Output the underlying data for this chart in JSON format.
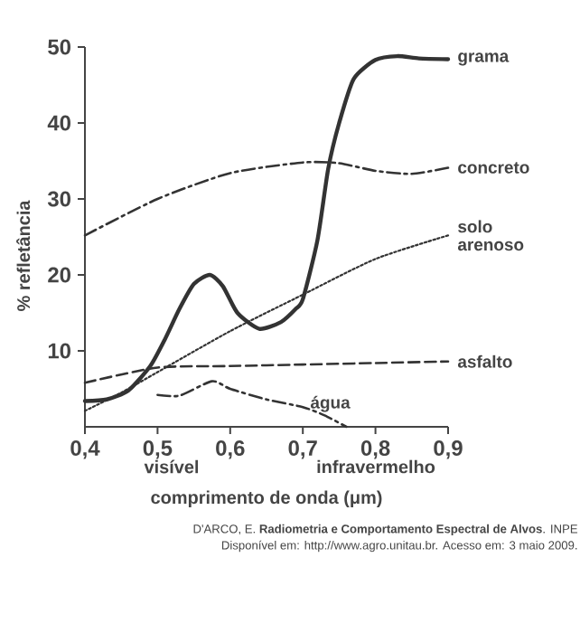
{
  "chart_data": {
    "type": "line",
    "xlabel": "comprimento de onda (μm)",
    "ylabel": "% refletância",
    "xlim": [
      0.4,
      0.9
    ],
    "ylim": [
      0,
      50
    ],
    "xticks": [
      {
        "value": 0.4,
        "label": "0,4"
      },
      {
        "value": 0.5,
        "label": "0,5"
      },
      {
        "value": 0.6,
        "label": "0,6"
      },
      {
        "value": 0.7,
        "label": "0,7"
      },
      {
        "value": 0.8,
        "label": "0,8"
      },
      {
        "value": 0.9,
        "label": "0,9"
      }
    ],
    "yticks": [
      10,
      20,
      30,
      40,
      50
    ],
    "series": [
      {
        "name": "grama",
        "color": "#333333",
        "line_style": "solid",
        "x": [
          0.4,
          0.43,
          0.46,
          0.49,
          0.51,
          0.53,
          0.55,
          0.572,
          0.59,
          0.61,
          0.64,
          0.67,
          0.69,
          0.7,
          0.72,
          0.735,
          0.75,
          0.77,
          0.8,
          0.83,
          0.86,
          0.9
        ],
        "values": [
          3.4,
          3.6,
          4.8,
          8.0,
          11.5,
          15.5,
          18.8,
          20.0,
          18.5,
          15.0,
          12.9,
          13.8,
          15.5,
          16.8,
          24.5,
          34,
          40,
          45.8,
          48.3,
          48.8,
          48.5,
          48.4
        ]
      },
      {
        "name": "concreto",
        "color": "#333333",
        "line_style": "dashdot",
        "x": [
          0.4,
          0.5,
          0.6,
          0.7,
          0.75,
          0.8,
          0.85,
          0.9
        ],
        "values": [
          25.2,
          30,
          33.4,
          34.8,
          34.7,
          33.7,
          33.3,
          34.1
        ]
      },
      {
        "name": "solo arenoso",
        "color": "#333333",
        "line_style": "dotted",
        "x": [
          0.4,
          0.45,
          0.5,
          0.6,
          0.7,
          0.8,
          0.9
        ],
        "values": [
          2.1,
          4.5,
          7.2,
          12.6,
          17.4,
          22.1,
          25.2
        ]
      },
      {
        "name": "asfalto",
        "color": "#333333",
        "line_style": "dashed",
        "x": [
          0.4,
          0.5,
          0.6,
          0.7,
          0.8,
          0.9
        ],
        "values": [
          5.8,
          7.8,
          8.0,
          8.2,
          8.4,
          8.6
        ]
      },
      {
        "name": "água",
        "color": "#333333",
        "line_style": "dashdot",
        "x": [
          0.5,
          0.53,
          0.575,
          0.6,
          0.65,
          0.7,
          0.73,
          0.76
        ],
        "values": [
          4.2,
          4.1,
          6.0,
          5.0,
          3.6,
          2.6,
          1.5,
          0
        ]
      }
    ],
    "annotations": [
      "visível",
      "infravermelho",
      "D'ARCO, E. **Radiometria e Comportamento Espectral de Alvos**. INPE",
      "Disponível em: http://www.agro.unitau.br. Acesso em: 3 maio 2009."
    ]
  }
}
